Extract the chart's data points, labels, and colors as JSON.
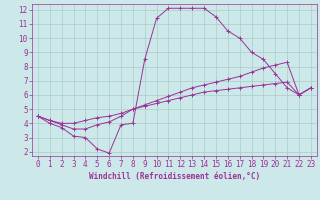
{
  "background_color": "#cce8e8",
  "grid_color": "#aacccc",
  "line_color": "#993399",
  "xlabel": "Windchill (Refroidissement éolien,°C)",
  "xlim_min": -0.5,
  "xlim_max": 23.5,
  "ylim_min": 1.7,
  "ylim_max": 12.4,
  "xticks": [
    0,
    1,
    2,
    3,
    4,
    5,
    6,
    7,
    8,
    9,
    10,
    11,
    12,
    13,
    14,
    15,
    16,
    17,
    18,
    19,
    20,
    21,
    22,
    23
  ],
  "yticks": [
    2,
    3,
    4,
    5,
    6,
    7,
    8,
    9,
    10,
    11,
    12
  ],
  "line1_x": [
    0,
    1,
    2,
    3,
    4,
    5,
    6,
    7,
    8,
    9,
    10,
    11,
    12,
    13,
    14,
    15,
    16,
    17,
    18,
    19,
    20,
    21,
    22,
    23
  ],
  "line1_y": [
    4.5,
    4.0,
    3.7,
    3.1,
    3.0,
    2.2,
    1.9,
    3.9,
    4.0,
    8.5,
    11.4,
    12.1,
    12.1,
    12.1,
    12.1,
    11.5,
    10.5,
    10.0,
    9.0,
    8.5,
    7.5,
    6.5,
    6.0,
    6.5
  ],
  "line2_x": [
    0,
    1,
    2,
    3,
    4,
    5,
    6,
    7,
    8,
    9,
    10,
    11,
    12,
    13,
    14,
    15,
    16,
    17,
    18,
    19,
    20,
    21,
    22,
    23
  ],
  "line2_y": [
    4.5,
    4.2,
    3.9,
    3.6,
    3.6,
    3.9,
    4.1,
    4.5,
    5.0,
    5.3,
    5.6,
    5.9,
    6.2,
    6.5,
    6.7,
    6.9,
    7.1,
    7.3,
    7.6,
    7.9,
    8.1,
    8.3,
    6.0,
    6.5
  ],
  "line3_x": [
    0,
    1,
    2,
    3,
    4,
    5,
    6,
    7,
    8,
    9,
    10,
    11,
    12,
    13,
    14,
    15,
    16,
    17,
    18,
    19,
    20,
    21,
    22,
    23
  ],
  "line3_y": [
    4.5,
    4.2,
    4.0,
    4.0,
    4.2,
    4.4,
    4.5,
    4.7,
    5.0,
    5.2,
    5.4,
    5.6,
    5.8,
    6.0,
    6.2,
    6.3,
    6.4,
    6.5,
    6.6,
    6.7,
    6.8,
    6.9,
    6.0,
    6.5
  ],
  "tick_fontsize": 5.5,
  "xlabel_fontsize": 5.5,
  "linewidth": 0.7,
  "markersize": 3.0,
  "markeredgewidth": 0.7
}
